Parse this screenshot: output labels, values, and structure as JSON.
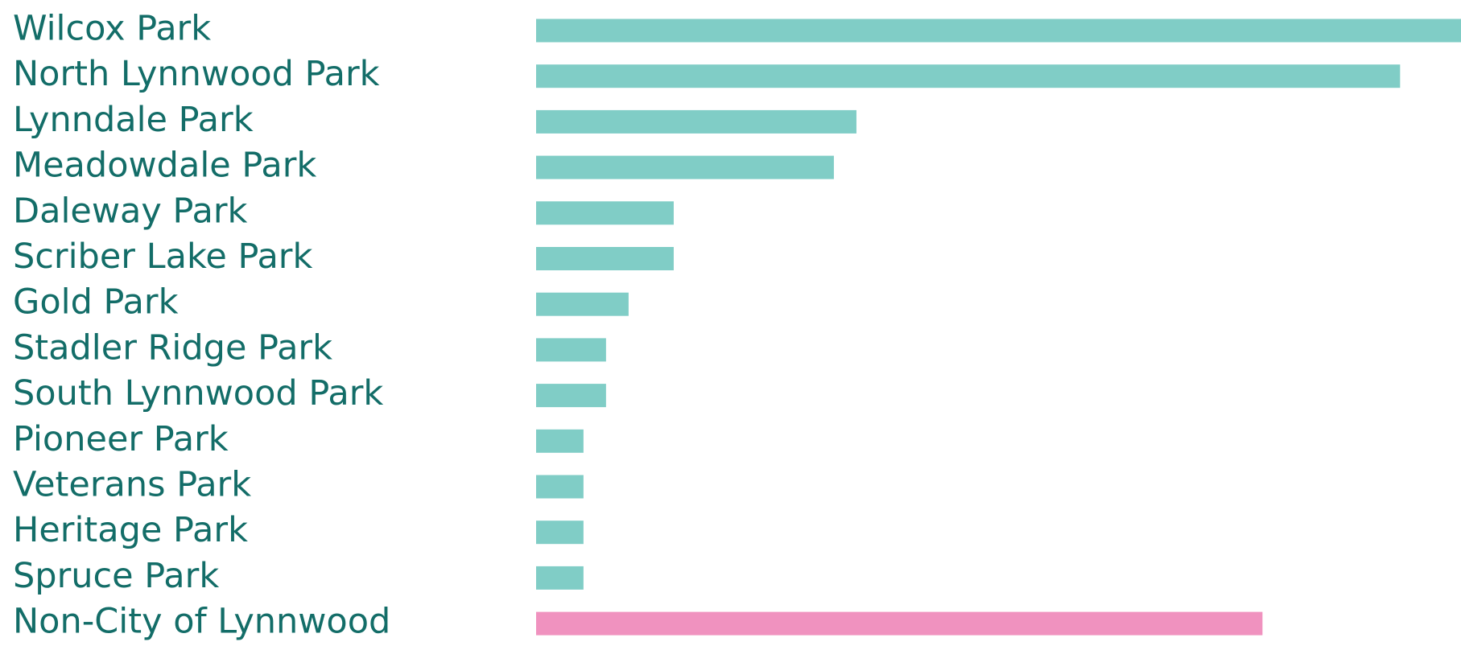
{
  "chart_data": {
    "type": "bar",
    "orientation": "horizontal",
    "categories": [
      "Wilcox Park",
      "North Lynnwood Park",
      "Lynndale Park",
      "Meadowdale Park",
      "Daleway Park",
      "Scriber Lake Park",
      "Gold Park",
      "Stadler Ridge Park",
      "South Lynnwood Park",
      "Pioneer Park",
      "Veterans Park",
      "Heritage Park",
      "Spruce Park",
      "Non-City of Lynnwood"
    ],
    "values": [
      41,
      38.3,
      14.2,
      13.2,
      6.1,
      6.1,
      4.1,
      3.1,
      3.1,
      2.1,
      2.1,
      2.1,
      2.1,
      32.2
    ],
    "bar_colors": [
      "#80cdc6",
      "#80cdc6",
      "#80cdc6",
      "#80cdc6",
      "#80cdc6",
      "#80cdc6",
      "#80cdc6",
      "#80cdc6",
      "#80cdc6",
      "#80cdc6",
      "#80cdc6",
      "#80cdc6",
      "#80cdc6",
      "#f092bf"
    ],
    "title": "",
    "xlabel": "",
    "ylabel": "",
    "xlim": [
      0,
      41
    ],
    "grid": false,
    "legend": "none"
  },
  "colors": {
    "label": "#136d68",
    "bar_primary": "#80cdc6",
    "bar_highlight": "#f092bf",
    "background": "#ffffff"
  }
}
